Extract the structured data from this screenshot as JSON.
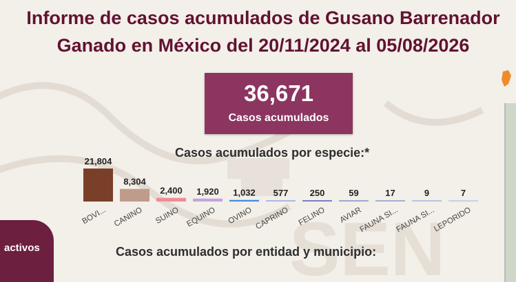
{
  "title": {
    "line1": "Informe de casos acumulados de Gusano Barrenador",
    "line2": "Ganado en México del 20/11/2024 al 05/08/2026"
  },
  "kpi": {
    "value": "36,671",
    "label": "Casos acumulados"
  },
  "species_section": {
    "title": "Casos acumulados por especie:*"
  },
  "entity_section": {
    "title": "Casos acumulados por entidad y municipio:"
  },
  "sidebar_pill": {
    "label": "activos"
  },
  "chart_data": {
    "type": "bar",
    "title": "Casos acumulados por especie:*",
    "categories": [
      "BOVI...",
      "CANINO",
      "SUINO",
      "EQUINO",
      "OVINO",
      "CAPRINO",
      "FELINO",
      "AVIAR",
      "FAUNA SI...",
      "FAUNA SI...",
      "LEPORIDO"
    ],
    "values": [
      21804,
      8304,
      2400,
      1920,
      1032,
      577,
      250,
      59,
      17,
      9,
      7
    ],
    "value_labels": [
      "21,804",
      "8,304",
      "2,400",
      "1,920",
      "1,032",
      "577",
      "250",
      "59",
      "17",
      "9",
      "7"
    ],
    "colors": [
      "#7a3f28",
      "#bf9b8c",
      "#ef8c96",
      "#c5a3dc",
      "#3d8de0",
      "#a9b9e2",
      "#7c7fc4",
      "#9aa8d0",
      "#a0b0d8",
      "#b8c4e0",
      "#c8d0e8"
    ],
    "ylim": [
      0,
      21804
    ]
  }
}
